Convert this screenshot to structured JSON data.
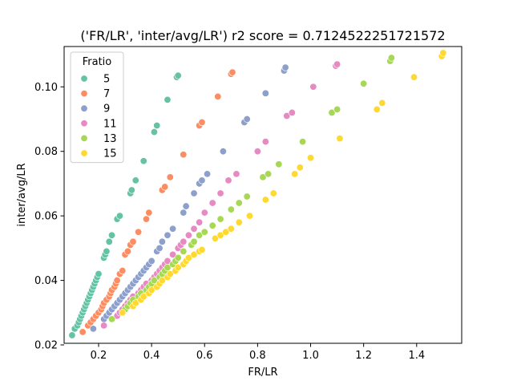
{
  "chart_data": {
    "type": "scatter",
    "title": "('FR/LR', 'inter/avg/LR') r2 score = 0.7124522251721572",
    "xlabel": "FR/LR",
    "ylabel": "inter/avg/LR",
    "xlim": [
      0.07,
      1.57
    ],
    "ylim": [
      0.0205,
      0.1125
    ],
    "xticks": [
      0.2,
      0.4,
      0.6,
      0.8,
      1.0,
      1.2,
      1.4
    ],
    "xtick_labels": [
      "0.2",
      "0.4",
      "0.6",
      "0.8",
      "1.0",
      "1.2",
      "1.4"
    ],
    "yticks": [
      0.02,
      0.04,
      0.06,
      0.08,
      0.1
    ],
    "ytick_labels": [
      "0.02",
      "0.04",
      "0.06",
      "0.08",
      "0.10"
    ],
    "grid": false,
    "legend": {
      "title": "Fratio",
      "placement": "top-left"
    },
    "series": [
      {
        "name": "5",
        "color": "#66c2a5",
        "points": [
          [
            0.1,
            0.023
          ],
          [
            0.11,
            0.025
          ],
          [
            0.12,
            0.026
          ],
          [
            0.125,
            0.027
          ],
          [
            0.13,
            0.028
          ],
          [
            0.135,
            0.029
          ],
          [
            0.14,
            0.03
          ],
          [
            0.145,
            0.031
          ],
          [
            0.15,
            0.032
          ],
          [
            0.155,
            0.033
          ],
          [
            0.16,
            0.034
          ],
          [
            0.165,
            0.035
          ],
          [
            0.17,
            0.036
          ],
          [
            0.175,
            0.037
          ],
          [
            0.18,
            0.038
          ],
          [
            0.185,
            0.039
          ],
          [
            0.19,
            0.04
          ],
          [
            0.195,
            0.041
          ],
          [
            0.2,
            0.042
          ],
          [
            0.22,
            0.047
          ],
          [
            0.225,
            0.048
          ],
          [
            0.23,
            0.049
          ],
          [
            0.24,
            0.052
          ],
          [
            0.25,
            0.054
          ],
          [
            0.27,
            0.059
          ],
          [
            0.28,
            0.06
          ],
          [
            0.32,
            0.067
          ],
          [
            0.325,
            0.068
          ],
          [
            0.34,
            0.071
          ],
          [
            0.37,
            0.077
          ],
          [
            0.41,
            0.086
          ],
          [
            0.42,
            0.088
          ],
          [
            0.46,
            0.096
          ],
          [
            0.495,
            0.103
          ],
          [
            0.5,
            0.1035
          ]
        ]
      },
      {
        "name": "7",
        "color": "#fc8d62",
        "points": [
          [
            0.14,
            0.024
          ],
          [
            0.16,
            0.026
          ],
          [
            0.17,
            0.027
          ],
          [
            0.18,
            0.028
          ],
          [
            0.19,
            0.029
          ],
          [
            0.2,
            0.03
          ],
          [
            0.21,
            0.031
          ],
          [
            0.215,
            0.032
          ],
          [
            0.22,
            0.033
          ],
          [
            0.23,
            0.034
          ],
          [
            0.24,
            0.035
          ],
          [
            0.245,
            0.036
          ],
          [
            0.25,
            0.037
          ],
          [
            0.26,
            0.038
          ],
          [
            0.265,
            0.039
          ],
          [
            0.27,
            0.04
          ],
          [
            0.28,
            0.042
          ],
          [
            0.29,
            0.043
          ],
          [
            0.3,
            0.048
          ],
          [
            0.31,
            0.049
          ],
          [
            0.32,
            0.051
          ],
          [
            0.33,
            0.052
          ],
          [
            0.35,
            0.055
          ],
          [
            0.38,
            0.059
          ],
          [
            0.39,
            0.061
          ],
          [
            0.44,
            0.068
          ],
          [
            0.45,
            0.069
          ],
          [
            0.47,
            0.072
          ],
          [
            0.52,
            0.079
          ],
          [
            0.58,
            0.088
          ],
          [
            0.59,
            0.089
          ],
          [
            0.65,
            0.097
          ],
          [
            0.7,
            0.104
          ],
          [
            0.705,
            0.1045
          ]
        ]
      },
      {
        "name": "9",
        "color": "#8da0cb",
        "points": [
          [
            0.18,
            0.025
          ],
          [
            0.22,
            0.028
          ],
          [
            0.23,
            0.029
          ],
          [
            0.24,
            0.03
          ],
          [
            0.25,
            0.031
          ],
          [
            0.26,
            0.032
          ],
          [
            0.27,
            0.033
          ],
          [
            0.28,
            0.034
          ],
          [
            0.29,
            0.035
          ],
          [
            0.3,
            0.036
          ],
          [
            0.31,
            0.037
          ],
          [
            0.32,
            0.038
          ],
          [
            0.33,
            0.039
          ],
          [
            0.34,
            0.04
          ],
          [
            0.35,
            0.041
          ],
          [
            0.36,
            0.042
          ],
          [
            0.37,
            0.043
          ],
          [
            0.38,
            0.044
          ],
          [
            0.39,
            0.045
          ],
          [
            0.4,
            0.046
          ],
          [
            0.42,
            0.049
          ],
          [
            0.43,
            0.05
          ],
          [
            0.44,
            0.052
          ],
          [
            0.46,
            0.054
          ],
          [
            0.48,
            0.056
          ],
          [
            0.52,
            0.061
          ],
          [
            0.53,
            0.063
          ],
          [
            0.56,
            0.067
          ],
          [
            0.58,
            0.07
          ],
          [
            0.59,
            0.071
          ],
          [
            0.61,
            0.073
          ],
          [
            0.67,
            0.08
          ],
          [
            0.75,
            0.089
          ],
          [
            0.76,
            0.09
          ],
          [
            0.83,
            0.098
          ],
          [
            0.9,
            0.105
          ],
          [
            0.905,
            0.106
          ]
        ]
      },
      {
        "name": "11",
        "color": "#e78ac3",
        "points": [
          [
            0.22,
            0.026
          ],
          [
            0.27,
            0.029
          ],
          [
            0.28,
            0.03
          ],
          [
            0.29,
            0.031
          ],
          [
            0.3,
            0.032
          ],
          [
            0.31,
            0.033
          ],
          [
            0.32,
            0.034
          ],
          [
            0.33,
            0.035
          ],
          [
            0.35,
            0.036
          ],
          [
            0.36,
            0.037
          ],
          [
            0.37,
            0.038
          ],
          [
            0.38,
            0.039
          ],
          [
            0.4,
            0.04
          ],
          [
            0.41,
            0.041
          ],
          [
            0.42,
            0.042
          ],
          [
            0.43,
            0.043
          ],
          [
            0.44,
            0.044
          ],
          [
            0.45,
            0.045
          ],
          [
            0.46,
            0.046
          ],
          [
            0.48,
            0.048
          ],
          [
            0.5,
            0.05
          ],
          [
            0.51,
            0.051
          ],
          [
            0.52,
            0.052
          ],
          [
            0.54,
            0.054
          ],
          [
            0.56,
            0.056
          ],
          [
            0.58,
            0.058
          ],
          [
            0.6,
            0.061
          ],
          [
            0.63,
            0.064
          ],
          [
            0.66,
            0.067
          ],
          [
            0.69,
            0.071
          ],
          [
            0.72,
            0.073
          ],
          [
            0.8,
            0.08
          ],
          [
            0.83,
            0.083
          ],
          [
            0.91,
            0.091
          ],
          [
            0.93,
            0.092
          ],
          [
            1.01,
            0.1
          ],
          [
            1.095,
            0.1065
          ],
          [
            1.1,
            0.107
          ]
        ]
      },
      {
        "name": "13",
        "color": "#a6d854",
        "points": [
          [
            0.25,
            0.028
          ],
          [
            0.3,
            0.031
          ],
          [
            0.31,
            0.032
          ],
          [
            0.32,
            0.033
          ],
          [
            0.33,
            0.034
          ],
          [
            0.35,
            0.035
          ],
          [
            0.36,
            0.036
          ],
          [
            0.38,
            0.037
          ],
          [
            0.39,
            0.038
          ],
          [
            0.4,
            0.039
          ],
          [
            0.41,
            0.04
          ],
          [
            0.43,
            0.041
          ],
          [
            0.44,
            0.042
          ],
          [
            0.45,
            0.043
          ],
          [
            0.46,
            0.044
          ],
          [
            0.48,
            0.045
          ],
          [
            0.49,
            0.046
          ],
          [
            0.5,
            0.047
          ],
          [
            0.52,
            0.049
          ],
          [
            0.55,
            0.051
          ],
          [
            0.56,
            0.052
          ],
          [
            0.58,
            0.054
          ],
          [
            0.6,
            0.055
          ],
          [
            0.63,
            0.057
          ],
          [
            0.66,
            0.059
          ],
          [
            0.7,
            0.062
          ],
          [
            0.73,
            0.064
          ],
          [
            0.76,
            0.066
          ],
          [
            0.82,
            0.072
          ],
          [
            0.84,
            0.073
          ],
          [
            0.88,
            0.076
          ],
          [
            0.97,
            0.083
          ],
          [
            1.08,
            0.092
          ],
          [
            1.1,
            0.093
          ],
          [
            1.2,
            0.101
          ],
          [
            1.3,
            0.108
          ],
          [
            1.305,
            0.109
          ]
        ]
      },
      {
        "name": "15",
        "color": "#ffd92f",
        "points": [
          [
            0.29,
            0.03
          ],
          [
            0.33,
            0.032
          ],
          [
            0.34,
            0.033
          ],
          [
            0.36,
            0.034
          ],
          [
            0.37,
            0.035
          ],
          [
            0.39,
            0.036
          ],
          [
            0.4,
            0.037
          ],
          [
            0.42,
            0.038
          ],
          [
            0.43,
            0.039
          ],
          [
            0.44,
            0.04
          ],
          [
            0.46,
            0.041
          ],
          [
            0.47,
            0.042
          ],
          [
            0.49,
            0.043
          ],
          [
            0.5,
            0.044
          ],
          [
            0.52,
            0.045
          ],
          [
            0.53,
            0.046
          ],
          [
            0.54,
            0.047
          ],
          [
            0.56,
            0.048
          ],
          [
            0.58,
            0.049
          ],
          [
            0.59,
            0.0495
          ],
          [
            0.64,
            0.053
          ],
          [
            0.66,
            0.054
          ],
          [
            0.68,
            0.055
          ],
          [
            0.7,
            0.056
          ],
          [
            0.73,
            0.058
          ],
          [
            0.77,
            0.06
          ],
          [
            0.83,
            0.065
          ],
          [
            0.86,
            0.067
          ],
          [
            0.94,
            0.073
          ],
          [
            0.96,
            0.075
          ],
          [
            1.0,
            0.078
          ],
          [
            1.11,
            0.084
          ],
          [
            1.25,
            0.093
          ],
          [
            1.27,
            0.095
          ],
          [
            1.39,
            0.103
          ],
          [
            1.495,
            0.1095
          ],
          [
            1.5,
            0.1105
          ]
        ]
      }
    ]
  }
}
